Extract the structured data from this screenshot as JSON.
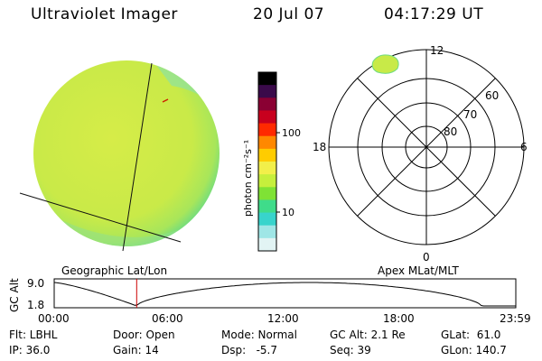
{
  "header": {
    "title": "Ultraviolet Imager",
    "date": "20 Jul 07",
    "time": "04:17:29 UT"
  },
  "colorbar": {
    "unit_label": "photon cm⁻²s⁻¹",
    "ticks": [
      "100",
      "10"
    ],
    "colors": [
      "#000000",
      "#3a0a4a",
      "#8a0033",
      "#c8001e",
      "#ff2a00",
      "#ff8800",
      "#ffcc00",
      "#f2ef4a",
      "#c6ef3c",
      "#7fe235",
      "#3fdc8a",
      "#38d4cc",
      "#9fe6e6",
      "#e2f4f4"
    ]
  },
  "earth_view": {
    "label": "Geographic Lat/Lon",
    "disk_color": "#d8ef4c",
    "limb_color": "#6fdc80"
  },
  "polar_plot": {
    "label": "Apex MLat/MLT",
    "mlt_labels": {
      "top": "12",
      "left": "18",
      "right": "6",
      "bottom": "0"
    },
    "lat_labels": [
      "60",
      "70",
      "80"
    ]
  },
  "altitude_panel": {
    "ylabel": "GC Alt",
    "y_ticks": [
      "9.0",
      "1.8"
    ],
    "x_ticks": [
      "00:00",
      "06:00",
      "12:00",
      "18:00",
      "23:59"
    ],
    "current_time_hours": 4.29
  },
  "info": {
    "flt": "Flt: LBHL",
    "ip": "IP: 36.0",
    "door": "Door: Open",
    "gain": "Gain: 14",
    "mode": "Mode: Normal",
    "dsp": "Dsp:   -5.7",
    "gc_alt": "GC Alt: 2.1 Re",
    "seq": "Seq: 39",
    "glat": "GLat:  61.0",
    "glon": "GLon: 140.7"
  }
}
